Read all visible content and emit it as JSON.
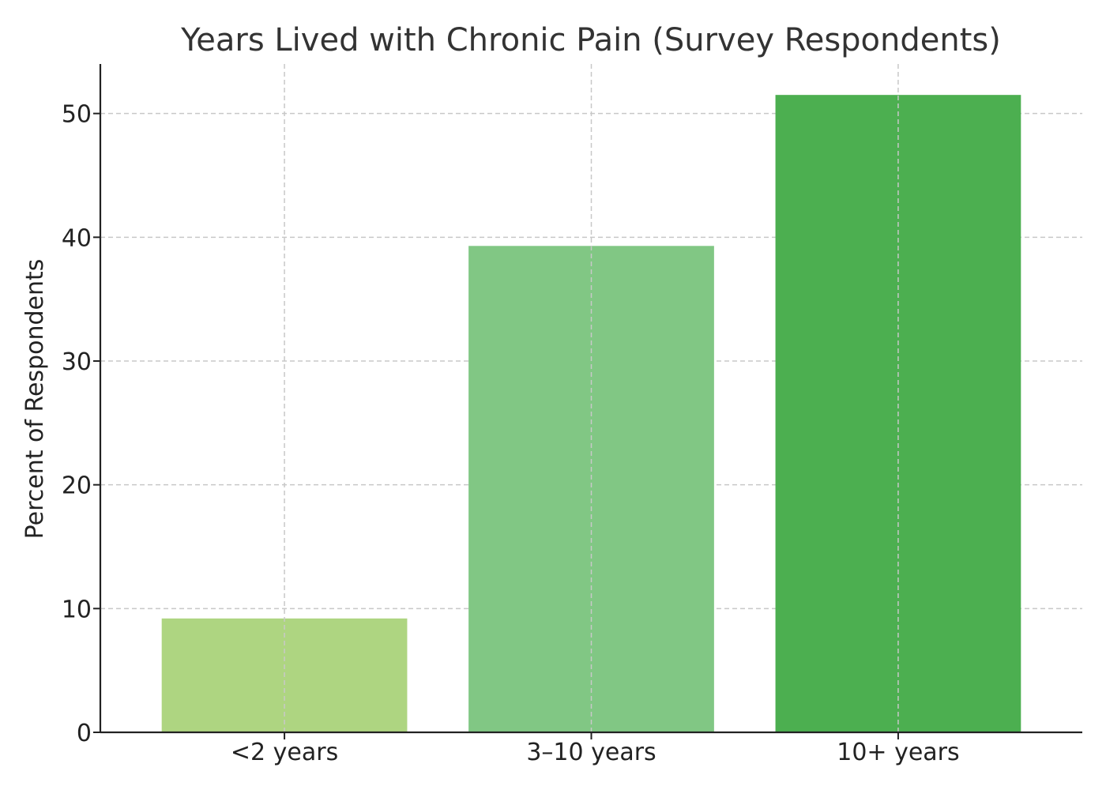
{
  "chart_data": {
    "type": "bar",
    "title": "Years Lived with Chronic Pain (Survey Respondents)",
    "xlabel": "",
    "ylabel": "Percent of Respondents",
    "categories": [
      "<2 years",
      "3–10 years",
      "10+ years"
    ],
    "values": [
      9.2,
      39.3,
      51.5
    ],
    "colors": [
      "#aed581",
      "#81c784",
      "#4caf50"
    ],
    "ylim": [
      0,
      54
    ],
    "yticks": [
      0,
      10,
      20,
      30,
      40,
      50
    ],
    "grid": true,
    "legend": "none"
  }
}
